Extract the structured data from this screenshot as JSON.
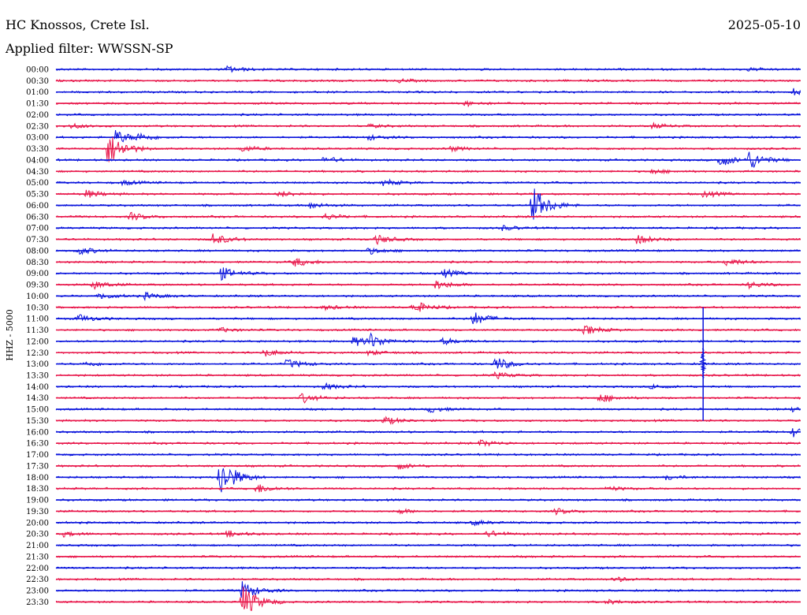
{
  "header": {
    "station": "HC Knossos, Crete Isl.",
    "date": "2025-05-10",
    "filter": "Applied filter: WWSSN-SP"
  },
  "chart_data": {
    "type": "line",
    "title": "HC Knossos, Crete Isl.",
    "subtitle": "Applied filter: WWSSN-SP",
    "ylabel": "HHZ - 5000",
    "xlabel": "",
    "date": "2025-05-10",
    "colors": {
      "even_trace": "#0a14dc",
      "odd_trace": "#e8164a",
      "text": "#000000"
    },
    "rows": [
      {
        "label": "00:00",
        "events": [
          {
            "x": 0.23,
            "amp": 4
          },
          {
            "x": 0.93,
            "amp": 2
          }
        ]
      },
      {
        "label": "00:30",
        "events": [
          {
            "x": 0.46,
            "amp": 2
          }
        ]
      },
      {
        "label": "01:00",
        "events": [
          {
            "x": 0.99,
            "amp": 4
          }
        ]
      },
      {
        "label": "01:30",
        "events": [
          {
            "x": 0.55,
            "amp": 3
          }
        ]
      },
      {
        "label": "02:00",
        "events": []
      },
      {
        "label": "02:30",
        "events": [
          {
            "x": 0.02,
            "amp": 3
          },
          {
            "x": 0.8,
            "amp": 3
          },
          {
            "x": 0.42,
            "amp": 2
          }
        ]
      },
      {
        "label": "03:00",
        "events": [
          {
            "x": 0.08,
            "amp": 9
          },
          {
            "x": 0.11,
            "amp": 4
          },
          {
            "x": 0.42,
            "amp": 3
          }
        ]
      },
      {
        "label": "03:30",
        "events": [
          {
            "x": 0.07,
            "amp": 22
          },
          {
            "x": 0.25,
            "amp": 4
          },
          {
            "x": 0.53,
            "amp": 3
          }
        ]
      },
      {
        "label": "04:00",
        "events": [
          {
            "x": 0.36,
            "amp": 4
          },
          {
            "x": 0.89,
            "amp": 9
          },
          {
            "x": 0.93,
            "amp": 12
          }
        ]
      },
      {
        "label": "04:30",
        "events": [
          {
            "x": 0.8,
            "amp": 3
          }
        ]
      },
      {
        "label": "05:00",
        "events": [
          {
            "x": 0.44,
            "amp": 4
          },
          {
            "x": 0.09,
            "amp": 3
          }
        ]
      },
      {
        "label": "05:30",
        "events": [
          {
            "x": 0.04,
            "amp": 5
          },
          {
            "x": 0.3,
            "amp": 4
          },
          {
            "x": 0.87,
            "amp": 4
          }
        ]
      },
      {
        "label": "06:00",
        "events": [
          {
            "x": 0.64,
            "amp": 24
          },
          {
            "x": 0.34,
            "amp": 4
          }
        ]
      },
      {
        "label": "06:30",
        "events": [
          {
            "x": 0.1,
            "amp": 5
          },
          {
            "x": 0.36,
            "amp": 4
          }
        ]
      },
      {
        "label": "07:00",
        "events": [
          {
            "x": 0.6,
            "amp": 3
          }
        ]
      },
      {
        "label": "07:30",
        "events": [
          {
            "x": 0.21,
            "amp": 8
          },
          {
            "x": 0.43,
            "amp": 6
          },
          {
            "x": 0.78,
            "amp": 6
          }
        ]
      },
      {
        "label": "08:00",
        "events": [
          {
            "x": 0.03,
            "amp": 5
          },
          {
            "x": 0.42,
            "amp": 4
          }
        ]
      },
      {
        "label": "08:30",
        "events": [
          {
            "x": 0.32,
            "amp": 6
          },
          {
            "x": 0.9,
            "amp": 5
          }
        ]
      },
      {
        "label": "09:00",
        "events": [
          {
            "x": 0.22,
            "amp": 9
          },
          {
            "x": 0.52,
            "amp": 5
          }
        ]
      },
      {
        "label": "09:30",
        "events": [
          {
            "x": 0.05,
            "amp": 5
          },
          {
            "x": 0.51,
            "amp": 6
          },
          {
            "x": 0.93,
            "amp": 4
          }
        ]
      },
      {
        "label": "10:00",
        "events": [
          {
            "x": 0.06,
            "amp": 4
          },
          {
            "x": 0.12,
            "amp": 4
          }
        ]
      },
      {
        "label": "10:30",
        "events": [
          {
            "x": 0.48,
            "amp": 8
          },
          {
            "x": 0.36,
            "amp": 3
          }
        ]
      },
      {
        "label": "11:00",
        "events": [
          {
            "x": 0.03,
            "amp": 5
          },
          {
            "x": 0.56,
            "amp": 9
          }
        ]
      },
      {
        "label": "11:30",
        "events": [
          {
            "x": 0.71,
            "amp": 6
          },
          {
            "x": 0.22,
            "amp": 3
          }
        ]
      },
      {
        "label": "12:00",
        "events": [
          {
            "x": 0.4,
            "amp": 6
          },
          {
            "x": 0.42,
            "amp": 9
          },
          {
            "x": 0.52,
            "amp": 4
          }
        ]
      },
      {
        "label": "12:30",
        "events": [
          {
            "x": 0.28,
            "amp": 5
          },
          {
            "x": 0.42,
            "amp": 3
          }
        ]
      },
      {
        "label": "13:00",
        "events": [
          {
            "x": 0.31,
            "amp": 6
          },
          {
            "x": 0.59,
            "amp": 9
          },
          {
            "x": 0.04,
            "amp": 3
          }
        ]
      },
      {
        "label": "13:30",
        "events": [
          {
            "x": 0.59,
            "amp": 4
          }
        ]
      },
      {
        "label": "14:00",
        "events": [
          {
            "x": 0.36,
            "amp": 4
          },
          {
            "x": 0.8,
            "amp": 3
          }
        ]
      },
      {
        "label": "14:30",
        "events": [
          {
            "x": 0.33,
            "amp": 6
          },
          {
            "x": 0.73,
            "amp": 6
          }
        ]
      },
      {
        "label": "15:00",
        "events": [
          {
            "x": 0.5,
            "amp": 4
          },
          {
            "x": 0.99,
            "amp": 4
          }
        ]
      },
      {
        "label": "15:30",
        "events": [
          {
            "x": 0.44,
            "amp": 5
          }
        ]
      },
      {
        "label": "16:00",
        "events": [
          {
            "x": 0.99,
            "amp": 6
          }
        ]
      },
      {
        "label": "16:30",
        "events": [
          {
            "x": 0.57,
            "amp": 4
          }
        ]
      },
      {
        "label": "17:00",
        "events": []
      },
      {
        "label": "17:30",
        "events": [
          {
            "x": 0.46,
            "amp": 4
          }
        ]
      },
      {
        "label": "18:00",
        "events": [
          {
            "x": 0.22,
            "amp": 26
          },
          {
            "x": 0.82,
            "amp": 3
          }
        ]
      },
      {
        "label": "18:30",
        "events": [
          {
            "x": 0.27,
            "amp": 6
          },
          {
            "x": 0.74,
            "amp": 3
          }
        ]
      },
      {
        "label": "19:00",
        "events": []
      },
      {
        "label": "19:30",
        "events": [
          {
            "x": 0.46,
            "amp": 3
          },
          {
            "x": 0.67,
            "amp": 4
          }
        ]
      },
      {
        "label": "20:00",
        "events": [
          {
            "x": 0.56,
            "amp": 3
          }
        ]
      },
      {
        "label": "20:30",
        "events": [
          {
            "x": 0.23,
            "amp": 4
          },
          {
            "x": 0.58,
            "amp": 4
          },
          {
            "x": 0.01,
            "amp": 3
          }
        ]
      },
      {
        "label": "21:00",
        "events": []
      },
      {
        "label": "21:30",
        "events": []
      },
      {
        "label": "22:00",
        "events": []
      },
      {
        "label": "22:30",
        "events": [
          {
            "x": 0.75,
            "amp": 3
          }
        ]
      },
      {
        "label": "23:00",
        "events": [
          {
            "x": 0.25,
            "amp": 12
          }
        ]
      },
      {
        "label": "23:30",
        "events": [
          {
            "x": 0.25,
            "amp": 22
          },
          {
            "x": 0.74,
            "amp": 3
          }
        ]
      }
    ],
    "spikes": [
      {
        "x": 0.869,
        "row_from": "10:30",
        "row_to": "15:30",
        "peak_row": "13:00"
      }
    ]
  }
}
